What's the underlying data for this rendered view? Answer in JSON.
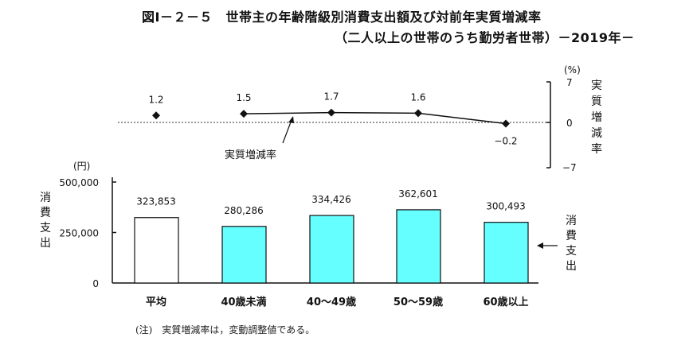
{
  "title": {
    "line1": "図Ⅰ－２－５　世帯主の年齢階級別消費支出額及び対前年実質増減率",
    "line2": "（二人以上の世帯のうち勤労者世帯）－2019年－"
  },
  "note": "(注)　実質増減率は，変動調整値である。",
  "chart_data": [
    {
      "type": "line",
      "title": "実質増減率",
      "ylabel": "実質増減率",
      "yunit": "(%)",
      "ylim": [
        -7,
        7
      ],
      "yticks": [
        "7",
        "0",
        "−7"
      ],
      "categories": [
        "平均",
        "40歳未満",
        "40～49歳",
        "50～59歳",
        "60歳以上"
      ],
      "values": [
        1.2,
        1.5,
        1.7,
        1.6,
        -0.2
      ],
      "labels": [
        "1.2",
        "1.5",
        "1.7",
        "1.6",
        "−0.2"
      ],
      "connected_from_index": 1,
      "annotation": "実質増減率",
      "zero_line": "dotted",
      "axis_position": "right"
    },
    {
      "type": "bar",
      "title": "消費支出",
      "ylabel": "消費支出",
      "yunit": "(円)",
      "ylim": [
        0,
        500000
      ],
      "yticks": [
        "500,000",
        "250,000",
        "0"
      ],
      "categories": [
        "平均",
        "40歳未満",
        "40～49歳",
        "50～59歳",
        "60歳以上"
      ],
      "values": [
        323853,
        280286,
        334426,
        362601,
        300493
      ],
      "labels": [
        "323,853",
        "280,286",
        "334,426",
        "362,601",
        "300,493"
      ],
      "colors": [
        "#ffffff",
        "#66ffff",
        "#66ffff",
        "#66ffff",
        "#66ffff"
      ],
      "annotation": "消費支出",
      "axis_position": "left"
    }
  ]
}
